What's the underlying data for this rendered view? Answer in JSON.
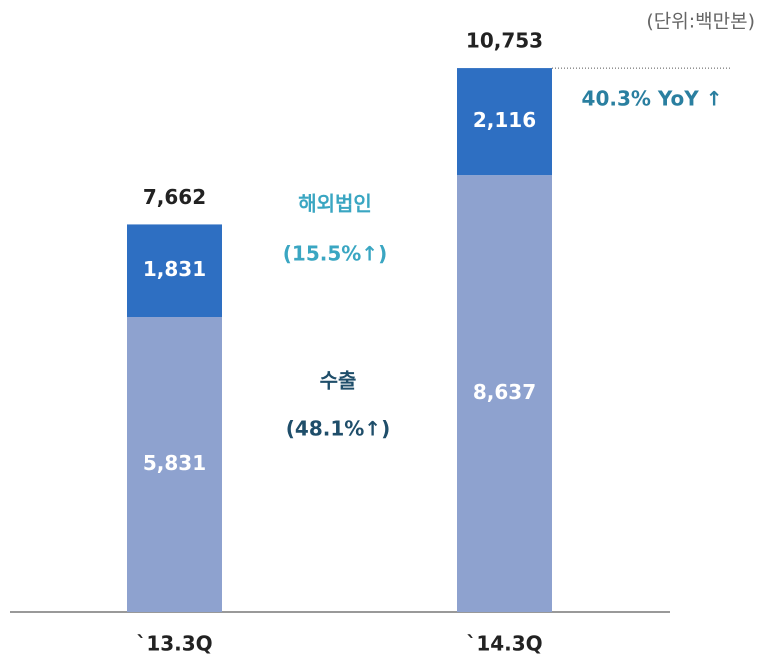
{
  "chart_data": {
    "type": "stacked_bar",
    "unit_note": "(단위:백만본)",
    "categories": [
      "`13.3Q",
      "`14.3Q"
    ],
    "series": [
      {
        "name": "수출",
        "color": "#8ea2cf",
        "values": [
          5831,
          8637
        ],
        "value_labels": [
          "5,831",
          "8,637"
        ]
      },
      {
        "name": "해외법인",
        "color": "#2e6fc2",
        "values": [
          1831,
          2116
        ],
        "value_labels": [
          "1,831",
          "2,116"
        ]
      }
    ],
    "totals": [
      7662,
      10753
    ],
    "total_labels": [
      "7,662",
      "10,753"
    ],
    "annotations": [
      "(15.5%↑)",
      "(48.1%↑)",
      "40.3% YoY ↑"
    ],
    "ylim": [
      0,
      12000
    ]
  }
}
